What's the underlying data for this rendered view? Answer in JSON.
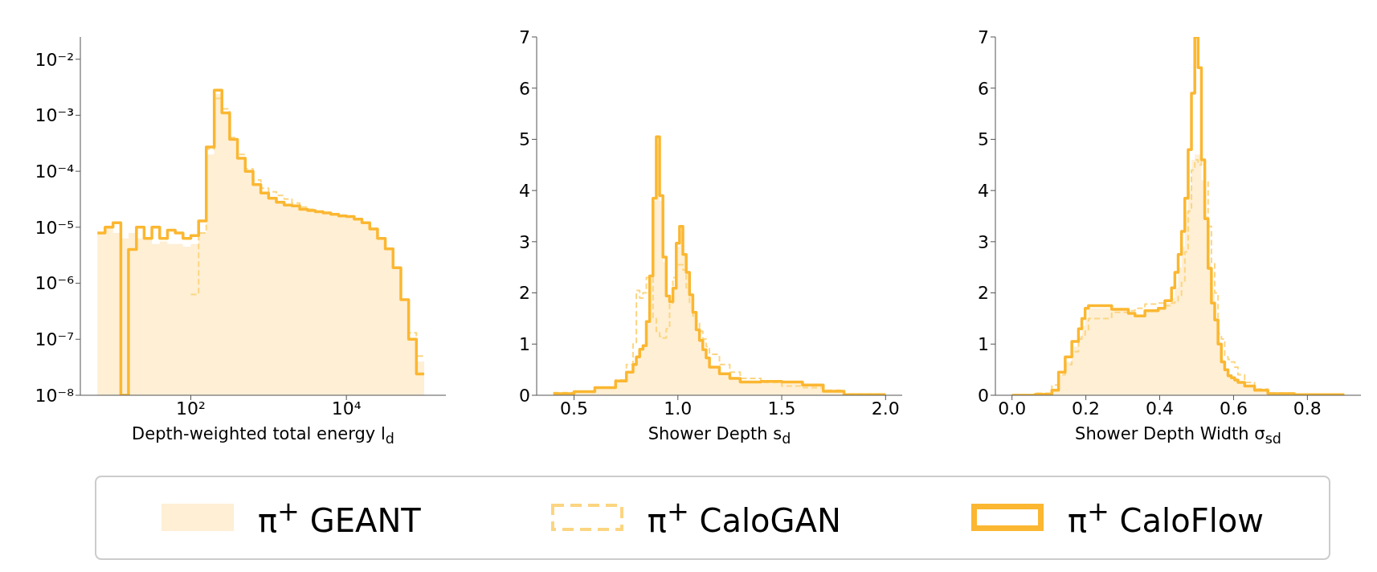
{
  "chart_data": [
    {
      "type": "histogram",
      "xlabel": "Depth-weighted total energy l$_{d}$",
      "log": "xy",
      "legend": "bottom",
      "xlim": [
        3.8,
        190000
      ],
      "xticks": [
        {
          "value": 100,
          "label": "10²"
        },
        {
          "value": 10000,
          "label": "10⁴"
        }
      ],
      "ylim": [
        1e-08,
        0.025
      ],
      "yticks": [
        {
          "value": 1e-08,
          "label": "10⁻⁸"
        },
        {
          "value": 1e-07,
          "label": "10⁻⁷"
        },
        {
          "value": 1e-06,
          "label": "10⁻⁶"
        },
        {
          "value": 1e-05,
          "label": "10⁻⁵"
        },
        {
          "value": 0.0001,
          "label": "10⁻⁴"
        },
        {
          "value": 0.001,
          "label": "10⁻³"
        },
        {
          "value": 0.01,
          "label": "10⁻²"
        }
      ],
      "bins": [
        6.3,
        7.9,
        10,
        12.6,
        15.8,
        20,
        25.1,
        31.6,
        39.8,
        50.1,
        63.1,
        79.4,
        100,
        126,
        158,
        200,
        251,
        316,
        398,
        501,
        631,
        794,
        1000,
        1259,
        1585,
        1995,
        2512,
        3162,
        3981,
        5012,
        6310,
        7943,
        10000,
        12589,
        15849,
        19953,
        25119,
        31623,
        39811,
        50119,
        63096,
        79433,
        100000
      ],
      "series": [
        {
          "name": "π$^{+}$ GEANT",
          "color": "#feefd5",
          "values": [
            7.9e-06,
            1e-05,
            7.9e-06,
            6.3e-06,
            7.9e-06,
            6.3e-06,
            6.3e-06,
            5e-06,
            5.6e-06,
            5e-06,
            5e-06,
            4.5e-06,
            5e-06,
            7.9e-06,
            0.0002,
            0.0024,
            0.0011,
            0.00035,
            0.00016,
            0.0001,
            5.8e-05,
            4.1e-05,
            3.3e-05,
            2.8e-05,
            2.5e-05,
            2.4e-05,
            2.1e-05,
            2e-05,
            1.9e-05,
            1.8e-05,
            1.7e-05,
            1.6e-05,
            1.55e-05,
            1.4e-05,
            1.2e-05,
            9.3e-06,
            6.3e-06,
            4.1e-06,
            1.9e-06,
            5.1e-07,
            1e-07,
            4e-08
          ]
        },
        {
          "name": "π$^{+}$ CaloGAN",
          "color": "#fcd581",
          "line_style": "dashed",
          "bins": [
            100,
            126,
            158,
            200,
            251,
            316,
            398,
            501,
            631,
            794,
            1000,
            1259,
            1585,
            1995,
            2512,
            3162,
            3981,
            5012,
            6310,
            7943,
            10000,
            12589,
            15849,
            19953,
            25119,
            31623,
            39811,
            50119,
            63096,
            79433,
            100000
          ],
          "values": [
            6.3e-07,
            7.9e-06,
            0.00025,
            0.002,
            0.0013,
            0.0004,
            0.0002,
            0.00011,
            7e-05,
            5e-05,
            4.3e-05,
            3.7e-05,
            3.2e-05,
            2.7e-05,
            2.3e-05,
            2.1e-05,
            1.9e-05,
            1.8e-05,
            1.7e-05,
            1.6e-05,
            1.55e-05,
            1.4e-05,
            1.2e-05,
            9.3e-06,
            6.3e-06,
            4.1e-06,
            1.9e-06,
            5.1e-07,
            1.3e-07,
            5e-08
          ]
        },
        {
          "name": "π$^{+}$ CaloFlow",
          "color": "#fbb731",
          "line_style": "solid",
          "values": [
            7.9e-06,
            1e-05,
            1.2e-05,
            1e-08,
            4e-06,
            1e-05,
            6.3e-06,
            1e-05,
            6.3e-06,
            8.9e-06,
            7.9e-06,
            6.3e-06,
            7.1e-06,
            1.3e-05,
            0.00027,
            0.0028,
            0.0011,
            0.00037,
            0.00017,
            0.0001,
            5.8e-05,
            4.1e-05,
            3.3e-05,
            2.8e-05,
            2.5e-05,
            2.4e-05,
            2.1e-05,
            2e-05,
            1.9e-05,
            1.8e-05,
            1.7e-05,
            1.6e-05,
            1.55e-05,
            1.4e-05,
            1.2e-05,
            9.3e-06,
            6.3e-06,
            4.1e-06,
            1.9e-06,
            5.1e-07,
            1e-07,
            2.4e-08
          ]
        }
      ]
    },
    {
      "type": "histogram",
      "xlabel": "Shower Depth s$_{d}$",
      "xlim": [
        0.32,
        2.08
      ],
      "xticks": [
        0.5,
        {
          "value": 1,
          "label": "1.0"
        },
        1.5,
        {
          "value": 2,
          "label": "2.0"
        }
      ],
      "ylim": [
        0,
        7
      ],
      "yticks": [
        0,
        1,
        2,
        3,
        4,
        5,
        6,
        7
      ],
      "bins": [
        0.4,
        0.5,
        0.6,
        0.7,
        0.752,
        0.784,
        0.8,
        0.816,
        0.832,
        0.848,
        0.864,
        0.88,
        0.896,
        0.912,
        0.928,
        0.944,
        0.96,
        0.976,
        0.992,
        1.008,
        1.024,
        1.04,
        1.056,
        1.072,
        1.088,
        1.104,
        1.12,
        1.136,
        1.152,
        1.2,
        1.25,
        1.3,
        1.4,
        1.5,
        1.6,
        1.7,
        1.8,
        2.0
      ],
      "series": [
        {
          "color": "#feefd5",
          "values": [
            0.03,
            0.07,
            0.15,
            0.28,
            0.45,
            0.6,
            0.75,
            0.9,
            0.97,
            1.44,
            2.3,
            3.8,
            4.9,
            3.8,
            2.6,
            1.9,
            1.8,
            2.1,
            2.9,
            3.2,
            2.75,
            2.4,
            1.96,
            1.62,
            1.28,
            1.07,
            0.89,
            0.73,
            0.55,
            0.42,
            0.33,
            0.26,
            0.27,
            0.26,
            0.2,
            0.08,
            0.01
          ]
        },
        {
          "color": "#fcd581",
          "line_style": "dashed",
          "values": [
            0.05,
            0.08,
            0.15,
            0.3,
            0.6,
            1.0,
            2.05,
            1.9,
            2.0,
            2.3,
            2.3,
            1.5,
            1.25,
            1.15,
            1.12,
            1.3,
            1.8,
            2.3,
            2.55,
            2.55,
            2.45,
            2.1,
            1.8,
            1.55,
            1.45,
            1.25,
            1.1,
            0.95,
            0.8,
            0.6,
            0.45,
            0.33,
            0.25,
            0.18,
            0.15,
            0.1,
            0.02
          ]
        },
        {
          "color": "#fbb731",
          "line_style": "solid",
          "values": [
            0.03,
            0.07,
            0.15,
            0.28,
            0.45,
            0.6,
            0.75,
            0.9,
            0.97,
            1.44,
            2.33,
            3.85,
            5.05,
            3.9,
            2.7,
            1.94,
            1.83,
            2.09,
            2.97,
            3.3,
            2.75,
            2.4,
            1.96,
            1.62,
            1.28,
            1.07,
            0.89,
            0.73,
            0.55,
            0.42,
            0.33,
            0.26,
            0.27,
            0.26,
            0.2,
            0.08,
            0.01
          ]
        }
      ]
    },
    {
      "type": "histogram",
      "xlabel": "Shower Depth Width σ$_{sd}$",
      "xlim": [
        -0.045,
        0.945
      ],
      "xticks": [
        {
          "value": 0,
          "label": "0.0"
        },
        0.2,
        0.4,
        0.6,
        0.8
      ],
      "ylim": [
        0,
        7
      ],
      "yticks": [
        0,
        1,
        2,
        3,
        4,
        5,
        6,
        7
      ],
      "bins": [
        0,
        0.063,
        0.108,
        0.126,
        0.144,
        0.162,
        0.18,
        0.189,
        0.198,
        0.207,
        0.27,
        0.315,
        0.333,
        0.36,
        0.396,
        0.414,
        0.432,
        0.441,
        0.45,
        0.459,
        0.468,
        0.477,
        0.486,
        0.495,
        0.504,
        0.513,
        0.522,
        0.531,
        0.54,
        0.549,
        0.558,
        0.567,
        0.576,
        0.585,
        0.594,
        0.603,
        0.612,
        0.63,
        0.657,
        0.693,
        0.765,
        0.9
      ],
      "series": [
        {
          "color": "#feefd5",
          "values": [
            0,
            0.03,
            0.12,
            0.4,
            0.65,
            0.95,
            1.15,
            1.35,
            1.5,
            1.7,
            1.7,
            1.6,
            1.55,
            1.65,
            1.7,
            1.8,
            1.9,
            2.1,
            2.5,
            2.9,
            3.6,
            4.0,
            4.6,
            4.7,
            4.7,
            4.2,
            3.5,
            2.6,
            2.0,
            1.5,
            1.0,
            0.7,
            0.5,
            0.4,
            0.34,
            0.3,
            0.25,
            0.18,
            0.1,
            0.03,
            0.01
          ]
        },
        {
          "color": "#fcd581",
          "line_style": "dashed",
          "values": [
            0,
            0.04,
            0.2,
            0.4,
            0.6,
            0.85,
            1.1,
            1.15,
            1.25,
            1.5,
            1.62,
            1.65,
            1.7,
            1.78,
            1.8,
            1.75,
            1.8,
            1.85,
            1.95,
            2.2,
            2.8,
            3.6,
            4.4,
            4.6,
            4.5,
            4.6,
            4.2,
            3.3,
            2.6,
            2.0,
            1.2,
            1.1,
            0.75,
            0.7,
            0.65,
            0.55,
            0.4,
            0.25,
            0.12,
            0.04,
            0.01
          ]
        },
        {
          "color": "#fbb731",
          "line_style": "solid",
          "values": [
            0,
            0.02,
            0.1,
            0.45,
            0.75,
            1.05,
            1.3,
            1.5,
            1.7,
            1.75,
            1.68,
            1.6,
            1.55,
            1.65,
            1.7,
            1.85,
            2.1,
            2.4,
            2.75,
            3.2,
            3.85,
            4.8,
            5.9,
            7,
            6.4,
            4.6,
            3.45,
            2.48,
            1.8,
            1.47,
            1.0,
            0.65,
            0.5,
            0.38,
            0.34,
            0.3,
            0.25,
            0.18,
            0.1,
            0.03,
            0.01
          ]
        }
      ]
    }
  ]
}
